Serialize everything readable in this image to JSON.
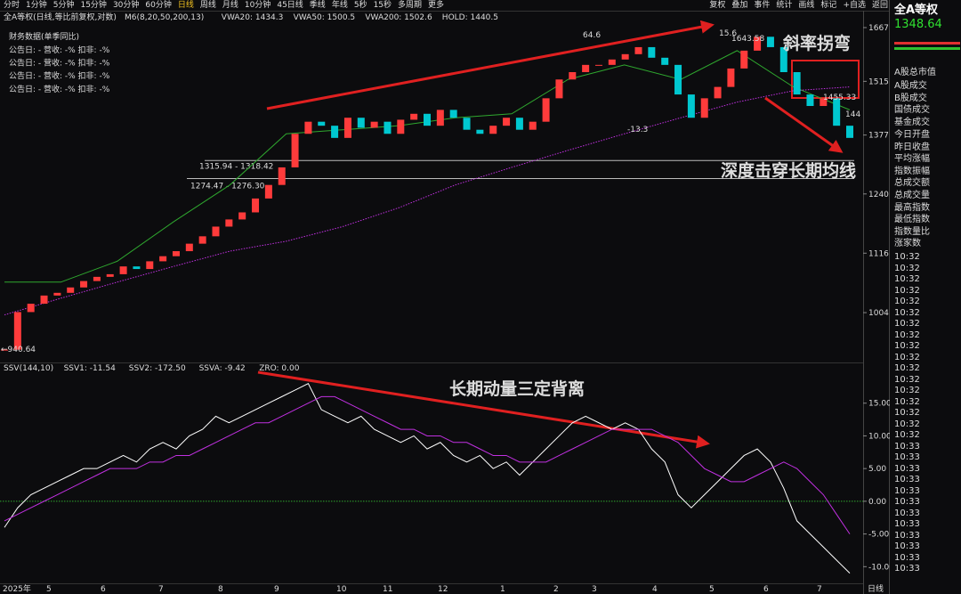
{
  "toolbar": {
    "periods": [
      "分时",
      "1分钟",
      "5分钟",
      "15分钟",
      "30分钟",
      "60分钟",
      "日线",
      "周线",
      "月线",
      "10分钟",
      "45日线",
      "季线",
      "年线",
      "5秒",
      "15秒",
      "多周期",
      "更多"
    ],
    "tools": [
      "复权",
      "叠加",
      "事件",
      "统计",
      "画线",
      "标记",
      "+自选",
      "返回"
    ]
  },
  "financial": {
    "title": "财务数据(单季同比)",
    "rows": [
      "公告日: -   营收: -%   扣非: -%",
      "公告日: -   营收: -%   扣非: -%",
      "公告日: -   营收: -%   扣非: -%",
      "公告日: -   营收: -%   扣非: -%"
    ]
  },
  "chart_data": [
    {
      "type": "candlestick",
      "title": "全A等权(日线,等比前复权,对数)",
      "indicators": [
        "M6(8,20,50,200,13)",
        "VWA20: 1434.3",
        "VWA50: 1500.5",
        "VWA200: 1502.6",
        "HOLD: 1440.5"
      ],
      "values": [
        940,
        1005,
        1020,
        1035,
        1040,
        1050,
        1062,
        1070,
        1075,
        1090,
        1085,
        1100,
        1110,
        1120,
        1135,
        1150,
        1170,
        1185,
        1200,
        1230,
        1260,
        1300,
        1380,
        1410,
        1400,
        1370,
        1420,
        1395,
        1410,
        1380,
        1415,
        1430,
        1400,
        1440,
        1420,
        1390,
        1380,
        1400,
        1420,
        1390,
        1410,
        1470,
        1520,
        1540,
        1560,
        1560,
        1575,
        1590,
        1610,
        1580,
        1560,
        1480,
        1420,
        1470,
        1500,
        1550,
        1600,
        1640,
        1610,
        1540,
        1480,
        1450,
        1470,
        1400,
        1370
      ],
      "series": [
        {
          "name": "HOLD",
          "color": "#2fa82f",
          "values": [
            1060,
            1060,
            1100,
            1180,
            1260,
            1380,
            1390,
            1400,
            1420,
            1430,
            1520,
            1560,
            1520,
            1600,
            1500,
            1440
          ]
        },
        {
          "name": "VWA200",
          "color": "#c030e0",
          "values": [
            1000,
            1030,
            1060,
            1090,
            1120,
            1140,
            1170,
            1210,
            1260,
            1300,
            1340,
            1380,
            1420,
            1460,
            1490,
            1500
          ]
        }
      ],
      "up_color": "#ff3b3b",
      "down_color": "#00c8d0",
      "log": true,
      "ylim": [
        935,
        1700
      ],
      "yticks": [
        1004,
        1116,
        1240,
        1377,
        1515,
        1667
      ],
      "levels": [
        {
          "value": 1315.94,
          "label": "1315.94 - 1318.42"
        },
        {
          "value": 1274.47,
          "label": "1274.47 - 1276.30"
        }
      ],
      "price_labels": [
        "64.6",
        "15.6",
        "1643.58",
        "-13.3",
        "←940.64",
        "1455.33",
        "144"
      ],
      "annotations": [
        "斜率拐弯",
        "深度击穿长期均线"
      ]
    },
    {
      "type": "line",
      "legend": [
        "SSV(144,10)",
        "SSV1: -11.54",
        "SSV2: -172.50",
        "SSVA: -9.42",
        "ZRO: 0.00"
      ],
      "series": [
        {
          "name": "SSV",
          "color": "#ffffff",
          "values": [
            -4,
            -1,
            1,
            2,
            3,
            4,
            5,
            5,
            6,
            7,
            6,
            8,
            9,
            8,
            10,
            11,
            13,
            12,
            13,
            14,
            15,
            16,
            17,
            18,
            14,
            13,
            12,
            13,
            11,
            10,
            9,
            10,
            8,
            9,
            7,
            6,
            7,
            5,
            6,
            4,
            6,
            8,
            10,
            12,
            13,
            12,
            11,
            12,
            11,
            8,
            6,
            1,
            -1,
            1,
            3,
            5,
            7,
            8,
            6,
            2,
            -3,
            -5,
            -7,
            -9,
            -11
          ]
        },
        {
          "name": "SSVA",
          "color": "#c030e0",
          "values": [
            -3,
            -2,
            -1,
            0,
            1,
            2,
            3,
            4,
            5,
            5,
            5,
            6,
            6,
            7,
            7,
            8,
            9,
            10,
            11,
            12,
            12,
            13,
            14,
            15,
            16,
            16,
            15,
            14,
            13,
            12,
            11,
            11,
            10,
            10,
            9,
            9,
            8,
            7,
            7,
            6,
            6,
            6,
            7,
            8,
            9,
            10,
            11,
            11,
            11,
            11,
            10,
            9,
            7,
            5,
            4,
            3,
            3,
            4,
            5,
            6,
            5,
            3,
            1,
            -2,
            -5
          ]
        }
      ],
      "ylim": [
        -12,
        20
      ],
      "yticks": [
        {
          "value": 15,
          "label": "15.00"
        },
        {
          "value": 10,
          "label": "10.00"
        },
        {
          "value": 5,
          "label": "5.00"
        },
        {
          "value": 0,
          "label": "0.00"
        },
        {
          "value": -5,
          "label": "-5.00"
        },
        {
          "value": -10,
          "label": "-10.00"
        }
      ],
      "zero_line": 0,
      "annotations": [
        "长期动量三定背离"
      ],
      "x_labels": [
        "2025年",
        "5",
        "6",
        "7",
        "8",
        "9",
        "10",
        "11",
        "12",
        "1",
        "2",
        "3",
        "4",
        "5",
        "6",
        "7",
        "日线"
      ]
    }
  ],
  "panel": {
    "name": "全A等权",
    "price": "1348.64",
    "fields": [
      "A股总市值",
      "A股成交",
      "B股成交",
      "国债成交",
      "基金成交",
      "今日开盘",
      "昨日收盘",
      "平均涨幅",
      "指数振幅",
      "总成交额",
      "总成交量",
      "最高指数",
      "最低指数",
      "指数量比",
      "涨家数"
    ],
    "times": [
      "10:32",
      "10:32",
      "10:32",
      "10:32",
      "10:32",
      "10:32",
      "10:32",
      "10:32",
      "10:32",
      "10:32",
      "10:32",
      "10:32",
      "10:32",
      "10:32",
      "10:32",
      "10:32",
      "10:32",
      "10:33",
      "10:33",
      "10:33",
      "10:33",
      "10:33",
      "10:33",
      "10:33",
      "10:33",
      "10:33",
      "10:33",
      "10:33",
      "10:33"
    ]
  }
}
